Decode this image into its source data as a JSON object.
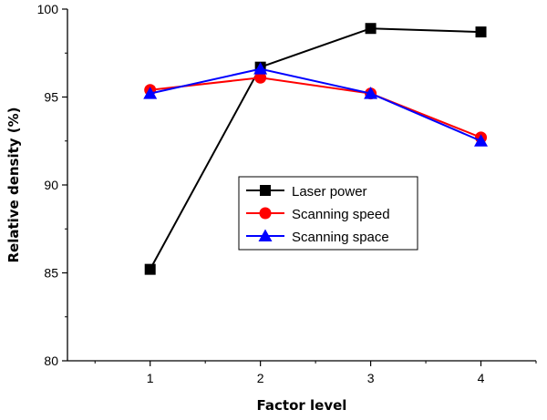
{
  "chart_data": {
    "type": "line",
    "title": "",
    "xlabel": "Factor level",
    "ylabel": "Relative density (%)",
    "categories": [
      "1",
      "2",
      "3",
      "4"
    ],
    "x": [
      1,
      2,
      3,
      4
    ],
    "xlim": [
      0.25,
      4.5
    ],
    "ylim": [
      80,
      100
    ],
    "yticks": [
      80,
      85,
      90,
      95,
      100
    ],
    "grid": false,
    "legend_position": "center",
    "series": [
      {
        "name": "Laser power",
        "color": "#000000",
        "marker": "square",
        "values": [
          85.2,
          96.7,
          98.9,
          98.7
        ]
      },
      {
        "name": "Scanning speed",
        "color": "#ff0000",
        "marker": "circle",
        "values": [
          95.4,
          96.1,
          95.2,
          92.7
        ]
      },
      {
        "name": "Scanning space",
        "color": "#0000ff",
        "marker": "triangle",
        "values": [
          95.2,
          96.6,
          95.2,
          92.5
        ]
      }
    ]
  }
}
